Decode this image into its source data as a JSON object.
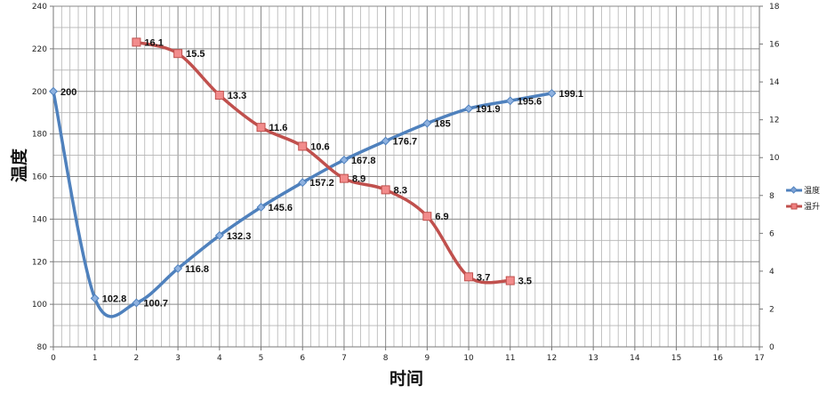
{
  "chart_data": {
    "type": "line",
    "title": "",
    "xlabel": "时间",
    "ylabel": "温度",
    "y2label": "",
    "x_ticks": [
      0,
      1,
      2,
      3,
      4,
      5,
      6,
      7,
      8,
      9,
      10,
      11,
      12,
      13,
      14,
      15,
      16,
      17
    ],
    "xlim": [
      0,
      17
    ],
    "ylim": [
      80,
      240
    ],
    "y_ticks": [
      80,
      100,
      120,
      140,
      160,
      180,
      200,
      220,
      240
    ],
    "y2lim": [
      0,
      18
    ],
    "y2_ticks": [
      0,
      2,
      4,
      6,
      8,
      10,
      12,
      14,
      16,
      18
    ],
    "grid": true,
    "legend_position": "right",
    "series": [
      {
        "name": "温度",
        "axis": "left",
        "color": "#4F81BD",
        "marker": "diamond",
        "smooth": true,
        "x": [
          0,
          1,
          2,
          3,
          4,
          5,
          6,
          7,
          8,
          9,
          10,
          11,
          12
        ],
        "values": [
          200,
          102.8,
          100.7,
          116.8,
          132.3,
          145.6,
          157.2,
          167.8,
          176.7,
          185,
          191.9,
          195.6,
          199.1
        ],
        "labels": [
          "200",
          "102.8",
          "100.7",
          "116.8",
          "132.3",
          "145.6",
          "157.2",
          "167.8",
          "176.7",
          "185",
          "191.9",
          "195.6",
          "199.1"
        ]
      },
      {
        "name": "温升",
        "axis": "right",
        "color": "#C0504D",
        "marker": "square",
        "smooth": true,
        "x": [
          2,
          3,
          4,
          5,
          6,
          7,
          8,
          9,
          10,
          11
        ],
        "values": [
          16.1,
          15.5,
          13.3,
          11.6,
          10.6,
          8.9,
          8.3,
          6.9,
          3.7,
          3.5
        ],
        "labels": [
          "16.1",
          "15.5",
          "13.3",
          "11.6",
          "10.6",
          "8.9",
          "8.3",
          "6.9",
          "3.7",
          "3.5"
        ]
      }
    ]
  },
  "legend": {
    "items": [
      {
        "label": "温度",
        "color": "#4F81BD"
      },
      {
        "label": "温升",
        "color": "#C0504D"
      }
    ]
  },
  "axes": {
    "x_title": "时间",
    "y_title": "温度"
  }
}
